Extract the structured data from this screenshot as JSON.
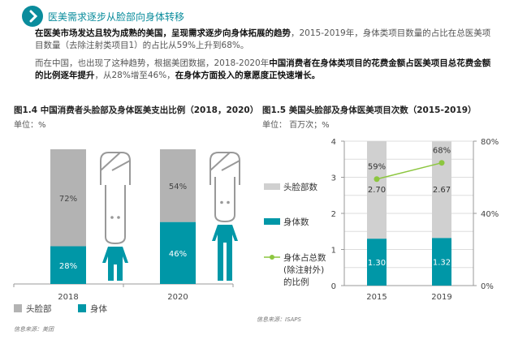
{
  "header": {
    "title": "医美需求逐步从脸部向身体转移",
    "icon": "chevron-right-icon"
  },
  "paragraphs": [
    [
      {
        "text": "在医美市场发达且较为成熟的美国，呈现需求逐步向身体拓展的趋势",
        "bold": true
      },
      {
        "text": "，2015-2019年，身体类项目数量的占比在总医美项目数量（去除注射类项目1）的占比从59%上升到68%。",
        "bold": false
      }
    ],
    [
      {
        "text": "而在中国，也出现了这种趋势，根据美团数据，2018-2020年",
        "bold": false
      },
      {
        "text": "中国消费者在身体类项目的花费金额占医美项目总花费金额的比例逐年提升",
        "bold": true
      },
      {
        "text": "，从28%增至46%，",
        "bold": false
      },
      {
        "text": "在身体方面投入的意愿度正快速增长。",
        "bold": true
      }
    ]
  ],
  "colors": {
    "accent": "#0a8c9c",
    "teal": "#0097a7",
    "gray_left": "#b3b3b3",
    "gray_right": "#d0d0d0",
    "green": "#8cc63f"
  },
  "chart_data": [
    {
      "type": "bar",
      "stacked": true,
      "title": "图1.4 中国消费者头脸部及身体医美支出比例（2018，2020）",
      "unit": "单位：%",
      "categories": [
        "2018",
        "2020"
      ],
      "series": [
        {
          "name": "头脸部",
          "values": [
            72,
            54
          ],
          "labels": [
            "72%",
            "54%"
          ]
        },
        {
          "name": "身体",
          "values": [
            28,
            46
          ],
          "labels": [
            "28%",
            "46%"
          ]
        }
      ],
      "ylim": [
        0,
        100
      ],
      "legend": "bottom",
      "source": "信息来源：美团"
    },
    {
      "type": "bar",
      "stacked": true,
      "title": "图1.5 美国头脸部及身体医美项目次数（2015-2019）",
      "unit": "单位：  百万次；%",
      "categories": [
        "2015",
        "2019"
      ],
      "series": [
        {
          "name": "头脸部数",
          "values": [
            2.7,
            2.67
          ],
          "labels": [
            "2.70",
            "2.67"
          ]
        },
        {
          "name": "身体数",
          "values": [
            1.3,
            1.32
          ],
          "labels": [
            "1.30",
            "1.32"
          ]
        },
        {
          "name": "身体占总数(除注射外)的比例",
          "type": "line",
          "axis": "right",
          "values": [
            59,
            68
          ],
          "labels": [
            "59%",
            "68%"
          ]
        }
      ],
      "ylim": [
        0,
        4
      ],
      "yticks": [
        "0",
        "1",
        "2",
        "3",
        "4"
      ],
      "y2lim": [
        0,
        80
      ],
      "y2ticks": [
        "0%",
        "40%",
        "80%"
      ],
      "legend_lines": {
        "face": "头脸部数",
        "body": "身体数",
        "ratio": [
          "身体占总数",
          "(除注射外)",
          "的比例"
        ]
      },
      "legend": "left",
      "grid": true,
      "source": "信息来源：ISAPS"
    }
  ]
}
